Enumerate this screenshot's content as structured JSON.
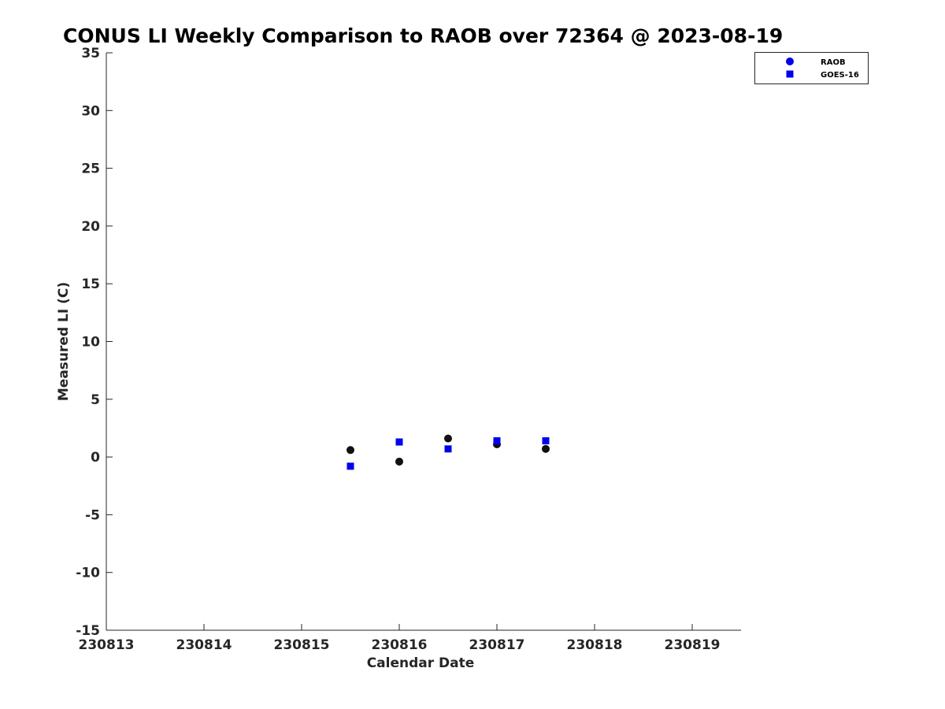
{
  "chart_data": {
    "type": "scatter",
    "title": "CONUS LI Weekly Comparison to RAOB over 72364 @ 2023-08-19",
    "xlabel": "Calendar Date",
    "ylabel": "Measured LI (C)",
    "xlim": [
      230813,
      230819.5
    ],
    "ylim": [
      -15,
      35
    ],
    "xticks": [
      230813,
      230814,
      230815,
      230816,
      230817,
      230818,
      230819
    ],
    "xtick_labels": [
      "230813",
      "230814",
      "230815",
      "230816",
      "230817",
      "230818",
      "230819"
    ],
    "yticks": [
      35,
      30,
      25,
      20,
      15,
      10,
      5,
      0,
      -5,
      -10,
      -15
    ],
    "ytick_labels": [
      "35",
      "30",
      "25",
      "20",
      "15",
      "10",
      "5",
      "0",
      "-5",
      "-10",
      "-15"
    ],
    "grid": false,
    "legend_position": "top-right, outside plot",
    "series": [
      {
        "name": "RAOB",
        "marker": "circle",
        "legend_color": "#0000ee",
        "point_color": "#111111",
        "points": [
          {
            "x": 230815.5,
            "y": 0.6
          },
          {
            "x": 230816.0,
            "y": -0.4
          },
          {
            "x": 230816.5,
            "y": 1.6
          },
          {
            "x": 230817.0,
            "y": 1.1
          },
          {
            "x": 230817.5,
            "y": 0.7
          }
        ]
      },
      {
        "name": "GOES-16",
        "marker": "square",
        "legend_color": "#0000ee",
        "point_color": "#0000ee",
        "points": [
          {
            "x": 230815.5,
            "y": -0.8
          },
          {
            "x": 230816.0,
            "y": 1.3
          },
          {
            "x": 230816.5,
            "y": 0.7
          },
          {
            "x": 230817.0,
            "y": 1.4
          },
          {
            "x": 230817.5,
            "y": 1.4
          }
        ]
      }
    ]
  }
}
